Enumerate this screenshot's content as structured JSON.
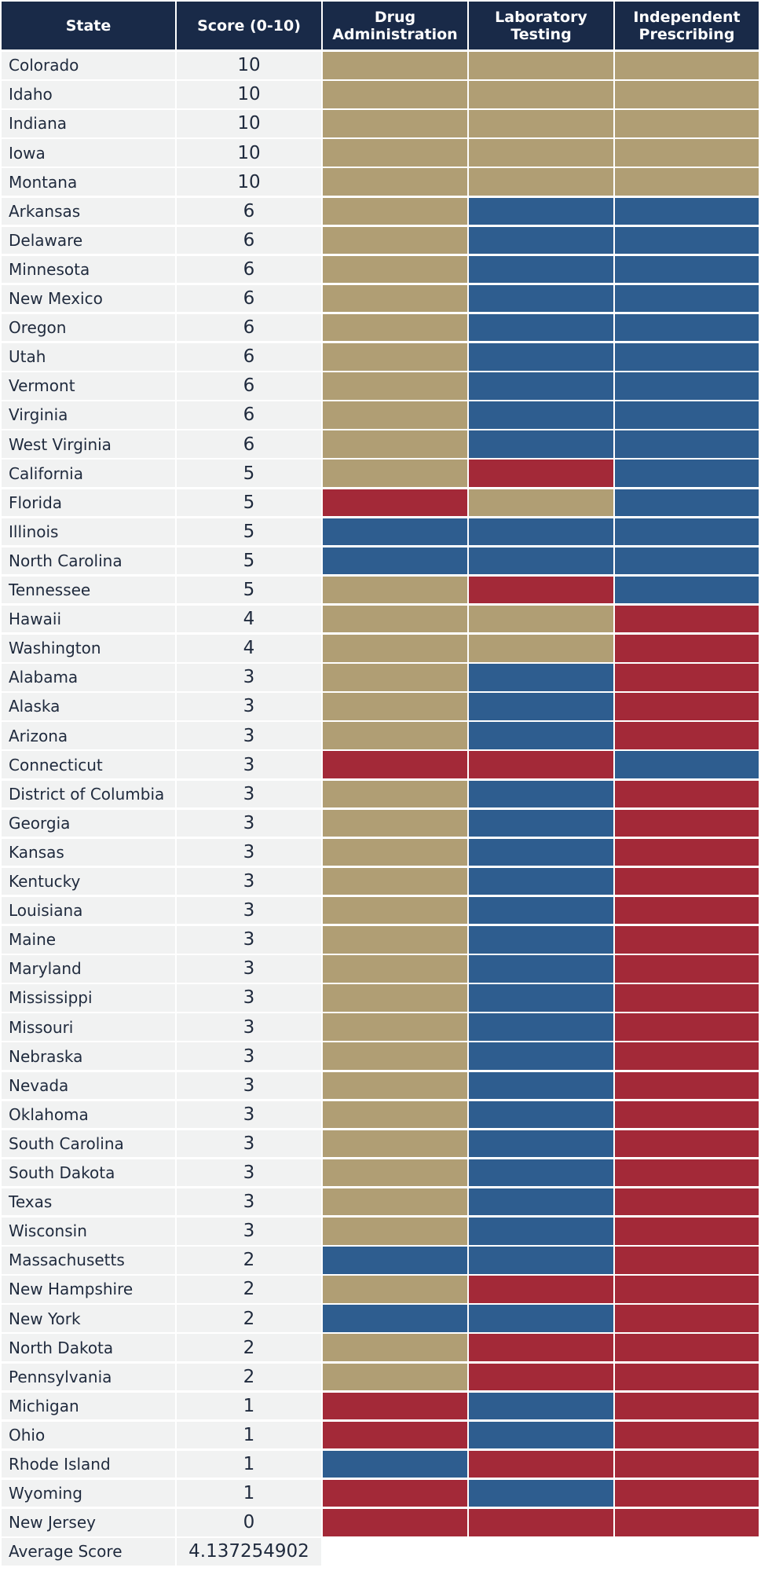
{
  "header": {
    "state": "State",
    "score": "Score (0-10)",
    "drug": "Drug Administration",
    "lab": "Laboratory Testing",
    "prescribing": "Independent Prescribing"
  },
  "colors": {
    "header_bg": "#192a48",
    "tan": "#b09e74",
    "blue": "#2e5d8f",
    "red": "#a32938",
    "row_bg": "#f1f2f2"
  },
  "chart_data": {
    "type": "table",
    "columns": [
      "State",
      "Score (0-10)",
      "Drug Administration",
      "Laboratory Testing",
      "Independent Prescribing"
    ],
    "color_key_note_values": [
      "tan",
      "blue",
      "red"
    ],
    "rows": [
      {
        "state": "Colorado",
        "score": "10",
        "drug": "tan",
        "lab": "tan",
        "prescribing": "tan"
      },
      {
        "state": "Idaho",
        "score": "10",
        "drug": "tan",
        "lab": "tan",
        "prescribing": "tan"
      },
      {
        "state": "Indiana",
        "score": "10",
        "drug": "tan",
        "lab": "tan",
        "prescribing": "tan"
      },
      {
        "state": "Iowa",
        "score": "10",
        "drug": "tan",
        "lab": "tan",
        "prescribing": "tan"
      },
      {
        "state": "Montana",
        "score": "10",
        "drug": "tan",
        "lab": "tan",
        "prescribing": "tan"
      },
      {
        "state": "Arkansas",
        "score": "6",
        "drug": "tan",
        "lab": "blue",
        "prescribing": "blue"
      },
      {
        "state": "Delaware",
        "score": "6",
        "drug": "tan",
        "lab": "blue",
        "prescribing": "blue"
      },
      {
        "state": "Minnesota",
        "score": "6",
        "drug": "tan",
        "lab": "blue",
        "prescribing": "blue"
      },
      {
        "state": "New Mexico",
        "score": "6",
        "drug": "tan",
        "lab": "blue",
        "prescribing": "blue"
      },
      {
        "state": "Oregon",
        "score": "6",
        "drug": "tan",
        "lab": "blue",
        "prescribing": "blue"
      },
      {
        "state": "Utah",
        "score": "6",
        "drug": "tan",
        "lab": "blue",
        "prescribing": "blue"
      },
      {
        "state": "Vermont",
        "score": "6",
        "drug": "tan",
        "lab": "blue",
        "prescribing": "blue"
      },
      {
        "state": "Virginia",
        "score": "6",
        "drug": "tan",
        "lab": "blue",
        "prescribing": "blue"
      },
      {
        "state": "West Virginia",
        "score": "6",
        "drug": "tan",
        "lab": "blue",
        "prescribing": "blue"
      },
      {
        "state": "California",
        "score": "5",
        "drug": "tan",
        "lab": "red",
        "prescribing": "blue"
      },
      {
        "state": "Florida",
        "score": "5",
        "drug": "red",
        "lab": "tan",
        "prescribing": "blue"
      },
      {
        "state": "Illinois",
        "score": "5",
        "drug": "blue",
        "lab": "blue",
        "prescribing": "blue"
      },
      {
        "state": "North Carolina",
        "score": "5",
        "drug": "blue",
        "lab": "blue",
        "prescribing": "blue"
      },
      {
        "state": "Tennessee",
        "score": "5",
        "drug": "tan",
        "lab": "red",
        "prescribing": "blue"
      },
      {
        "state": "Hawaii",
        "score": "4",
        "drug": "tan",
        "lab": "tan",
        "prescribing": "red"
      },
      {
        "state": "Washington",
        "score": "4",
        "drug": "tan",
        "lab": "tan",
        "prescribing": "red"
      },
      {
        "state": "Alabama",
        "score": "3",
        "drug": "tan",
        "lab": "blue",
        "prescribing": "red"
      },
      {
        "state": "Alaska",
        "score": "3",
        "drug": "tan",
        "lab": "blue",
        "prescribing": "red"
      },
      {
        "state": "Arizona",
        "score": "3",
        "drug": "tan",
        "lab": "blue",
        "prescribing": "red"
      },
      {
        "state": "Connecticut",
        "score": "3",
        "drug": "red",
        "lab": "red",
        "prescribing": "blue"
      },
      {
        "state": "District of Columbia",
        "score": "3",
        "drug": "tan",
        "lab": "blue",
        "prescribing": "red"
      },
      {
        "state": "Georgia",
        "score": "3",
        "drug": "tan",
        "lab": "blue",
        "prescribing": "red"
      },
      {
        "state": "Kansas",
        "score": "3",
        "drug": "tan",
        "lab": "blue",
        "prescribing": "red"
      },
      {
        "state": "Kentucky",
        "score": "3",
        "drug": "tan",
        "lab": "blue",
        "prescribing": "red"
      },
      {
        "state": "Louisiana",
        "score": "3",
        "drug": "tan",
        "lab": "blue",
        "prescribing": "red"
      },
      {
        "state": "Maine",
        "score": "3",
        "drug": "tan",
        "lab": "blue",
        "prescribing": "red"
      },
      {
        "state": "Maryland",
        "score": "3",
        "drug": "tan",
        "lab": "blue",
        "prescribing": "red"
      },
      {
        "state": "Mississippi",
        "score": "3",
        "drug": "tan",
        "lab": "blue",
        "prescribing": "red"
      },
      {
        "state": "Missouri",
        "score": "3",
        "drug": "tan",
        "lab": "blue",
        "prescribing": "red"
      },
      {
        "state": "Nebraska",
        "score": "3",
        "drug": "tan",
        "lab": "blue",
        "prescribing": "red"
      },
      {
        "state": "Nevada",
        "score": "3",
        "drug": "tan",
        "lab": "blue",
        "prescribing": "red"
      },
      {
        "state": "Oklahoma",
        "score": "3",
        "drug": "tan",
        "lab": "blue",
        "prescribing": "red"
      },
      {
        "state": "South Carolina",
        "score": "3",
        "drug": "tan",
        "lab": "blue",
        "prescribing": "red"
      },
      {
        "state": "South Dakota",
        "score": "3",
        "drug": "tan",
        "lab": "blue",
        "prescribing": "red"
      },
      {
        "state": "Texas",
        "score": "3",
        "drug": "tan",
        "lab": "blue",
        "prescribing": "red"
      },
      {
        "state": "Wisconsin",
        "score": "3",
        "drug": "tan",
        "lab": "blue",
        "prescribing": "red"
      },
      {
        "state": "Massachusetts",
        "score": "2",
        "drug": "blue",
        "lab": "blue",
        "prescribing": "red"
      },
      {
        "state": "New Hampshire",
        "score": "2",
        "drug": "tan",
        "lab": "red",
        "prescribing": "red"
      },
      {
        "state": "New York",
        "score": "2",
        "drug": "blue",
        "lab": "blue",
        "prescribing": "red"
      },
      {
        "state": "North Dakota",
        "score": "2",
        "drug": "tan",
        "lab": "red",
        "prescribing": "red"
      },
      {
        "state": "Pennsylvania",
        "score": "2",
        "drug": "tan",
        "lab": "red",
        "prescribing": "red"
      },
      {
        "state": "Michigan",
        "score": "1",
        "drug": "red",
        "lab": "blue",
        "prescribing": "red"
      },
      {
        "state": "Ohio",
        "score": "1",
        "drug": "red",
        "lab": "blue",
        "prescribing": "red"
      },
      {
        "state": "Rhode Island",
        "score": "1",
        "drug": "blue",
        "lab": "red",
        "prescribing": "red"
      },
      {
        "state": "Wyoming",
        "score": "1",
        "drug": "red",
        "lab": "blue",
        "prescribing": "red"
      },
      {
        "state": "New Jersey",
        "score": "0",
        "drug": "red",
        "lab": "red",
        "prescribing": "red"
      }
    ],
    "average": {
      "label": "Average Score",
      "value": "4.137254902"
    }
  }
}
